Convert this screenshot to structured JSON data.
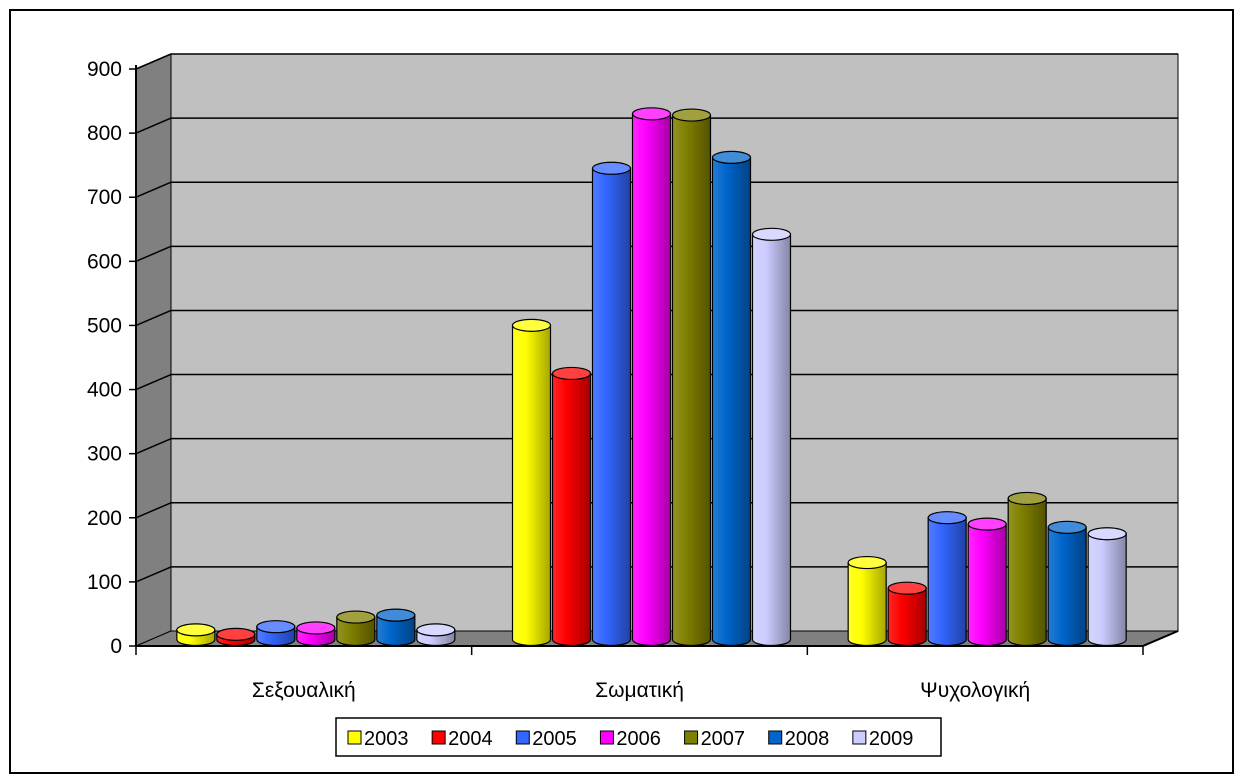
{
  "chart_data": {
    "type": "bar",
    "variant": "3d-cylinder",
    "categories": [
      "Σεξουαλική",
      "Σωματική",
      "Ψυχολογική"
    ],
    "series": [
      {
        "name": "2003",
        "color": "#FFFF00",
        "values": [
          15,
          490,
          120
        ]
      },
      {
        "name": "2004",
        "color": "#FF0000",
        "values": [
          8,
          415,
          80
        ]
      },
      {
        "name": "2005",
        "color": "#3366FF",
        "values": [
          20,
          735,
          190
        ]
      },
      {
        "name": "2006",
        "color": "#FF00FF",
        "values": [
          18,
          820,
          180
        ]
      },
      {
        "name": "2007",
        "color": "#808000",
        "values": [
          35,
          818,
          220
        ]
      },
      {
        "name": "2008",
        "color": "#0066CC",
        "values": [
          38,
          752,
          175
        ]
      },
      {
        "name": "2009",
        "color": "#CCCCFF",
        "values": [
          15,
          632,
          165
        ]
      }
    ],
    "title": "",
    "xlabel": "",
    "ylabel": "",
    "ylim": [
      0,
      900
    ],
    "yticks": [
      "0",
      "100",
      "200",
      "300",
      "400",
      "500",
      "600",
      "700",
      "800",
      "900"
    ],
    "grid": true,
    "legend": "bottom",
    "wall_color": "#C0C0C0",
    "side_wall_color": "#808080",
    "floor_color": "#808080"
  }
}
